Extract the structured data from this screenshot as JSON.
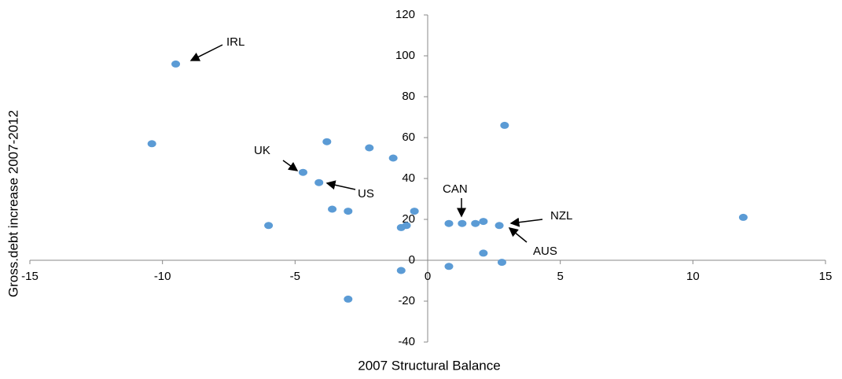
{
  "chart_data": {
    "type": "scatter",
    "x_label": "2007 Structural  Balance",
    "y_label": "Gross.debt increase 2007-2012",
    "color": "#5b9bd5",
    "x": [
      -9.5,
      -10.4,
      -3.8,
      -2.2,
      -1.3,
      -4.7,
      -4.1,
      -3.6,
      -3.0,
      -6.0,
      -0.5,
      -1.0,
      -0.8,
      -1.0,
      -3.0,
      0.8,
      1.3,
      1.8,
      2.1,
      2.7,
      2.1,
      0.8,
      2.8,
      2.9,
      11.9
    ],
    "values": [
      96,
      57,
      58,
      55,
      50,
      43,
      38,
      25,
      24,
      17,
      24,
      16,
      17,
      -5,
      -19,
      18,
      18,
      18,
      19,
      17,
      3.5,
      -3,
      -1,
      66,
      21
    ],
    "xlim": [
      -15,
      15
    ],
    "xticks": [
      -15,
      -10,
      -5,
      0,
      5,
      10,
      15
    ],
    "ylim": [
      -40,
      120
    ],
    "yticks": [
      -40,
      -20,
      0,
      20,
      40,
      60,
      80,
      100,
      120
    ],
    "annotations": [
      "IRL",
      "UK",
      "US",
      "CAN",
      "NZL",
      "AUS"
    ]
  }
}
